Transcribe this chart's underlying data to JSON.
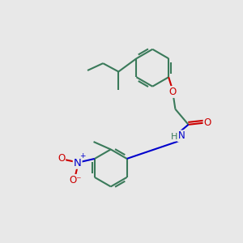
{
  "background_color": "#e8e8e8",
  "bond_color": "#3a7a5a",
  "bond_width": 1.5,
  "atom_colors": {
    "O": "#cc0000",
    "N": "#0000cc",
    "C": "#3a7a5a"
  },
  "font_size": 8.5,
  "fig_size": [
    3.0,
    3.0
  ],
  "dpi": 100
}
